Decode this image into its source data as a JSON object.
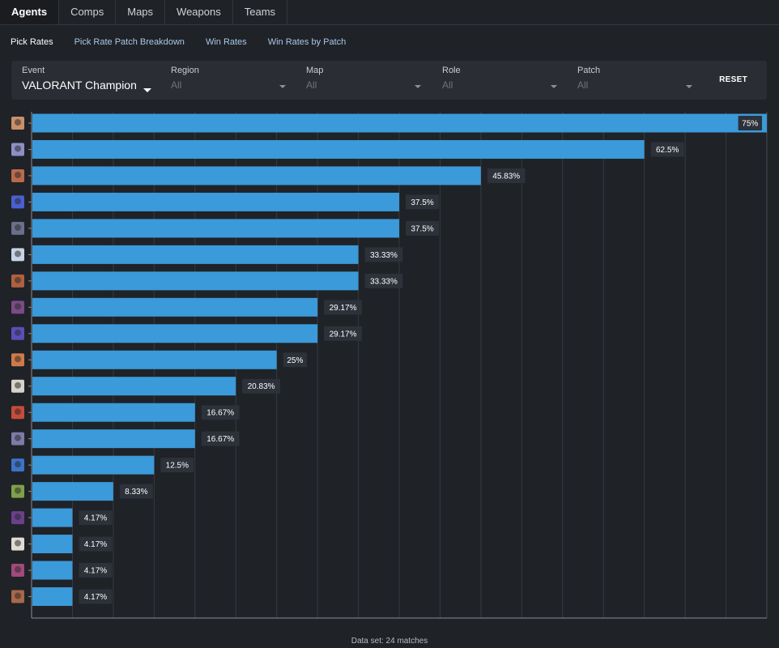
{
  "nav": {
    "tabs": [
      {
        "label": "Agents",
        "active": true
      },
      {
        "label": "Comps",
        "active": false
      },
      {
        "label": "Maps",
        "active": false
      },
      {
        "label": "Weapons",
        "active": false
      },
      {
        "label": "Teams",
        "active": false
      }
    ]
  },
  "subnav": {
    "tabs": [
      {
        "label": "Pick Rates",
        "active": true
      },
      {
        "label": "Pick Rate Patch Breakdown",
        "active": false
      },
      {
        "label": "Win Rates",
        "active": false
      },
      {
        "label": "Win Rates by Patch",
        "active": false
      }
    ]
  },
  "filters": {
    "event": {
      "label": "Event",
      "value": "VALORANT Champion"
    },
    "region": {
      "label": "Region",
      "value": "All"
    },
    "map": {
      "label": "Map",
      "value": "All"
    },
    "role": {
      "label": "Role",
      "value": "All"
    },
    "patch": {
      "label": "Patch",
      "value": "All"
    },
    "reset_label": "RESET"
  },
  "chart_data": {
    "type": "bar",
    "orientation": "horizontal",
    "title": "",
    "xlabel": "",
    "ylabel": "",
    "xlim": [
      0,
      75
    ],
    "grid": true,
    "bar_color": "#3b9ad9",
    "values": [
      75,
      62.5,
      45.83,
      37.5,
      37.5,
      33.33,
      33.33,
      29.17,
      29.17,
      25,
      20.83,
      16.67,
      16.67,
      12.5,
      8.33,
      4.17,
      4.17,
      4.17,
      4.17
    ],
    "labels": [
      "75%",
      "62.5%",
      "45.83%",
      "37.5%",
      "37.5%",
      "33.33%",
      "33.33%",
      "29.17%",
      "29.17%",
      "25%",
      "20.83%",
      "16.67%",
      "16.67%",
      "12.5%",
      "8.33%",
      "4.17%",
      "4.17%",
      "4.17%",
      "4.17%"
    ],
    "icon_colors": [
      "#c98f6a",
      "#8d8fc4",
      "#b86a4b",
      "#4a5fd0",
      "#6b6f8a",
      "#c9d2e6",
      "#b0603f",
      "#7a4b86",
      "#5a4fb8",
      "#d07a4a",
      "#d8d3c8",
      "#c74b3a",
      "#7f7aa6",
      "#3d73c8",
      "#7fa04a",
      "#6b3f8a",
      "#e0dcd2",
      "#a04a7a",
      "#a8684a"
    ]
  },
  "footer": {
    "text": "Data set: 24 matches"
  }
}
